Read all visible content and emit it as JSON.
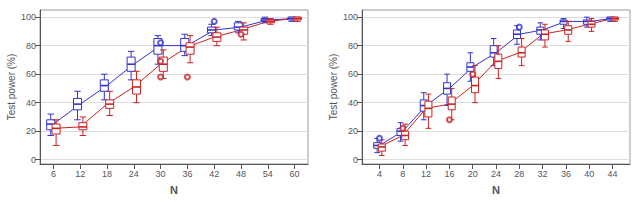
{
  "chart_data": [
    {
      "type": "boxplot",
      "xlabel": "N",
      "ylabel": "Test power (%)",
      "x": [
        6,
        12,
        18,
        24,
        30,
        36,
        42,
        48,
        54,
        60
      ],
      "xlim": [
        3,
        63
      ],
      "xticks": [
        6,
        12,
        18,
        24,
        30,
        36,
        42,
        48,
        54,
        60
      ],
      "ylim": [
        -3,
        105
      ],
      "yticks": [
        0,
        20,
        40,
        60,
        80,
        100
      ],
      "grid": true,
      "series": [
        {
          "color": "#3333cc",
          "median": [
            25,
            39,
            52,
            67,
            80,
            80,
            91,
            93,
            98,
            99
          ],
          "q1": [
            21,
            35,
            48,
            62,
            74,
            76,
            89,
            91,
            97,
            98
          ],
          "q3": [
            28,
            43,
            56,
            72,
            85,
            85,
            93,
            96,
            99,
            100
          ],
          "whislo": [
            17,
            28,
            42,
            56,
            67,
            73,
            87,
            89,
            96,
            97
          ],
          "whishi": [
            32,
            48,
            60,
            76,
            87,
            88,
            95,
            97,
            100,
            100
          ],
          "fliers_x": [
            30,
            42
          ],
          "fliers_y": [
            82,
            97
          ]
        },
        {
          "color": "#cc2222",
          "median": [
            22,
            23,
            39,
            51,
            67,
            79,
            86,
            91,
            97,
            99
          ],
          "q1": [
            18,
            21,
            36,
            46,
            62,
            74,
            83,
            88,
            96,
            98
          ],
          "q3": [
            25,
            26,
            42,
            56,
            72,
            82,
            89,
            93,
            98,
            100
          ],
          "whislo": [
            10,
            17,
            31,
            40,
            57,
            68,
            80,
            84,
            95,
            97
          ],
          "whishi": [
            28,
            30,
            48,
            62,
            77,
            87,
            93,
            96,
            99,
            100
          ],
          "fliers_x": [
            30,
            30,
            36,
            48
          ],
          "fliers_y": [
            58,
            69,
            58,
            88
          ]
        }
      ]
    },
    {
      "type": "boxplot",
      "xlabel": "N",
      "ylabel": "Test power (%)",
      "x": [
        4,
        8,
        12,
        16,
        20,
        24,
        28,
        32,
        36,
        40,
        44
      ],
      "xlim": [
        1,
        47
      ],
      "xticks": [
        4,
        8,
        12,
        16,
        20,
        24,
        28,
        32,
        36,
        40,
        44
      ],
      "ylim": [
        -3,
        105
      ],
      "yticks": [
        0,
        20,
        40,
        60,
        80,
        100
      ],
      "grid": true,
      "series": [
        {
          "color": "#3333cc",
          "median": [
            10,
            20,
            38,
            50,
            65,
            75,
            88,
            91,
            97,
            97,
            99
          ],
          "q1": [
            8,
            17,
            34,
            46,
            62,
            72,
            85,
            88,
            95,
            95,
            98
          ],
          "q3": [
            12,
            22,
            42,
            54,
            68,
            80,
            91,
            93,
            98,
            98,
            100
          ],
          "whislo": [
            5,
            13,
            28,
            38,
            55,
            66,
            81,
            84,
            92,
            93,
            97
          ],
          "whishi": [
            15,
            26,
            47,
            60,
            75,
            85,
            94,
            96,
            99,
            100,
            100
          ],
          "fliers_x": [
            4,
            28
          ],
          "fliers_y": [
            15,
            93
          ]
        },
        {
          "color": "#cc2222",
          "median": [
            9,
            17,
            36,
            39,
            52,
            69,
            75,
            88,
            91,
            95,
            99
          ],
          "q1": [
            6,
            14,
            30,
            35,
            47,
            64,
            72,
            84,
            88,
            93,
            98
          ],
          "q3": [
            11,
            20,
            41,
            44,
            58,
            74,
            79,
            91,
            94,
            97,
            100
          ],
          "whislo": [
            3,
            10,
            22,
            28,
            40,
            57,
            66,
            79,
            83,
            90,
            97
          ],
          "whishi": [
            14,
            25,
            46,
            50,
            66,
            80,
            85,
            95,
            97,
            99,
            100
          ],
          "fliers_x": [
            8,
            16,
            20
          ],
          "fliers_y": [
            22,
            28,
            60
          ]
        }
      ]
    }
  ]
}
